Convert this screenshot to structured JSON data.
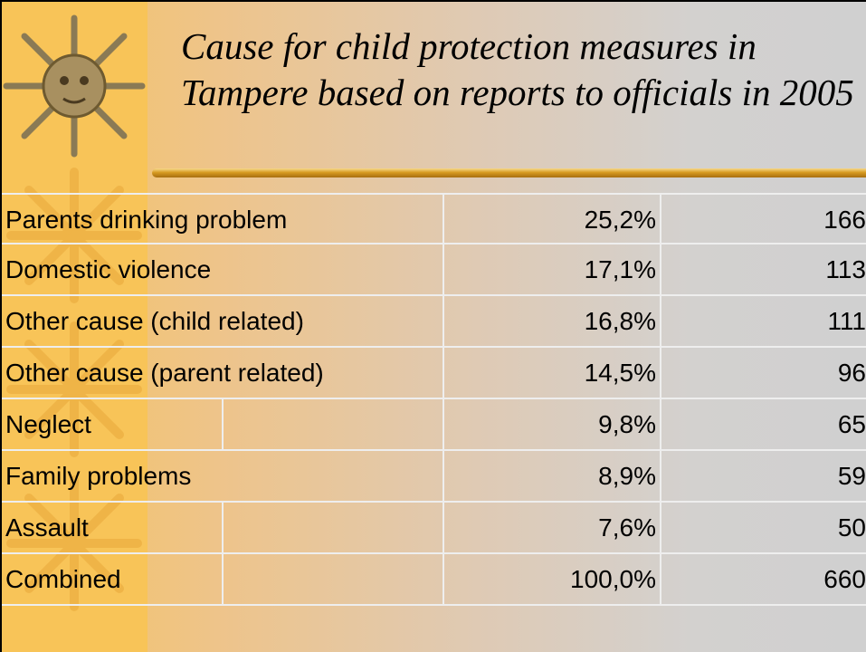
{
  "header": {
    "title": "Cause for child protection measures in Tampere based on reports to officials in 2005"
  },
  "table": {
    "rows": [
      [
        "Parents drinking problem",
        "25,2%",
        "166"
      ],
      [
        "Domestic violence",
        "17,1%",
        "113"
      ],
      [
        "Other cause (child related)",
        "16,8%",
        "111"
      ],
      [
        "Other cause (parent related)",
        "14,5%",
        "96"
      ],
      [
        "Neglect",
        "9,8%",
        "65"
      ],
      [
        "Family problems",
        "8,9%",
        "59"
      ],
      [
        "Assault",
        "7,6%",
        "50"
      ],
      [
        "Combined",
        "100,0%",
        "660"
      ]
    ]
  }
}
